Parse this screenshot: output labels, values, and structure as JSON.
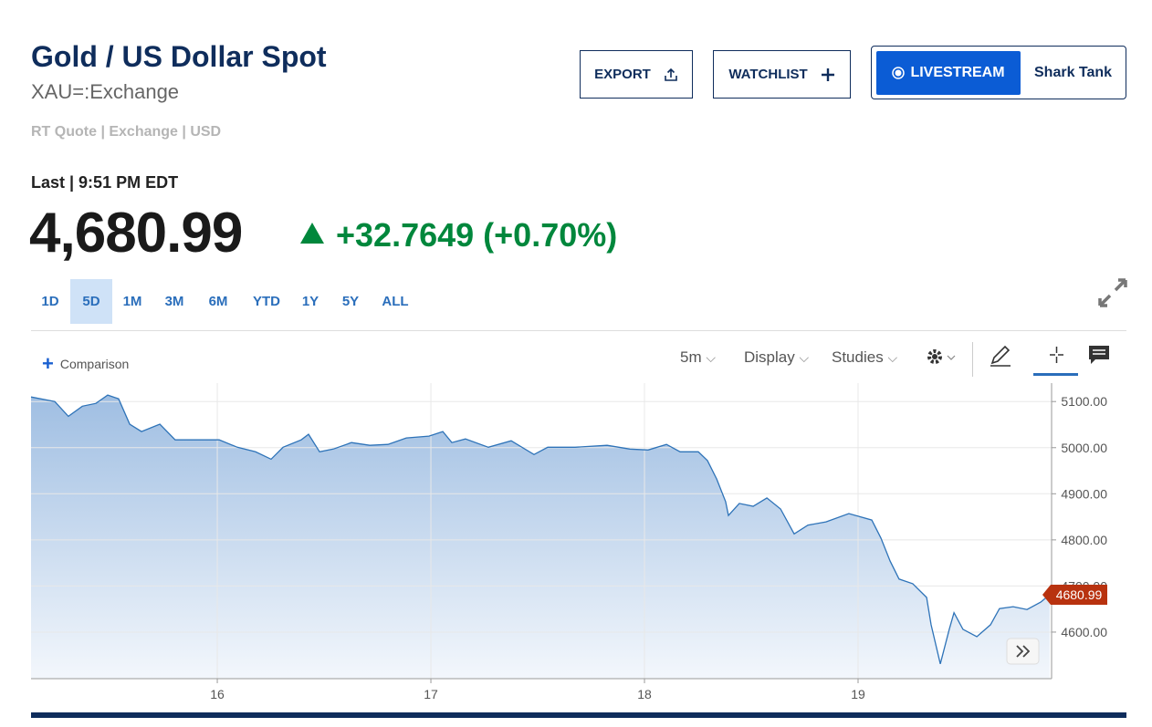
{
  "header": {
    "title": "Gold / US Dollar Spot",
    "symbol": "XAU=:Exchange",
    "quote_info": "RT Quote | Exchange | USD"
  },
  "actions": {
    "export": "EXPORT",
    "watchlist": "WATCHLIST",
    "livestream": "LIVESTREAM",
    "show": "Shark Tank"
  },
  "quote": {
    "last_label": "Last | 9:51 PM EDT",
    "price": "4,680.99",
    "change": "+32.7649",
    "change_percent": "(+0.70%)"
  },
  "ranges": {
    "options": [
      "1D",
      "5D",
      "1M",
      "3M",
      "6M",
      "YTD",
      "1Y",
      "5Y",
      "ALL"
    ],
    "active": 1
  },
  "toolbar": {
    "comparison": "Comparison",
    "interval": "5m",
    "display": "Display",
    "studies": "Studies"
  },
  "chart_data": {
    "type": "area",
    "x": [
      15.128,
      15.239,
      15.303,
      15.368,
      15.432,
      15.487,
      15.538,
      15.59,
      15.645,
      15.731,
      15.803,
      16.009,
      16.094,
      16.179,
      16.252,
      16.308,
      16.393,
      16.427,
      16.479,
      16.543,
      16.628,
      16.714,
      16.799,
      16.885,
      16.991,
      17.056,
      17.098,
      17.162,
      17.269,
      17.376,
      17.483,
      17.547,
      17.675,
      17.825,
      17.932,
      18.017,
      18.103,
      18.167,
      18.252,
      18.295,
      18.338,
      18.38,
      18.393,
      18.444,
      18.509,
      18.573,
      18.637,
      18.701,
      18.765,
      18.85,
      18.957,
      19.064,
      19.107,
      19.15,
      19.192,
      19.256,
      19.321,
      19.342,
      19.385,
      19.427,
      19.449,
      19.491,
      19.556,
      19.62,
      19.662,
      19.726,
      19.791,
      19.855,
      19.897
    ],
    "values": [
      5110,
      5100,
      5068,
      5090,
      5096,
      5114,
      5106,
      5051,
      5035,
      5051,
      5017,
      5017,
      5001,
      4991,
      4975,
      5001,
      5017,
      5029,
      4991,
      4997,
      5011,
      5005,
      5007,
      5021,
      5025,
      5035,
      5011,
      5019,
      5001,
      5015,
      4985,
      5001,
      5001,
      5005,
      4997,
      4995,
      5007,
      4991,
      4991,
      4972,
      4932,
      4883,
      4853,
      4879,
      4873,
      4891,
      4867,
      4813,
      4832,
      4839,
      4857,
      4843,
      4804,
      4754,
      4715,
      4705,
      4675,
      4616,
      4531,
      4606,
      4642,
      4606,
      4590,
      4616,
      4651,
      4655,
      4649,
      4665,
      4680.99
    ],
    "color": "#2e73b8",
    "xlim": [
      15.128,
      19.906
    ],
    "ylim": [
      4499,
      5140
    ],
    "xticks": [
      16,
      17,
      18,
      19
    ],
    "yticks": [
      {
        "value": 4600,
        "label": "4600.00"
      },
      {
        "value": 4700,
        "label": "4700.00"
      },
      {
        "value": 4800,
        "label": "4800.00"
      },
      {
        "value": 4900,
        "label": "4900.00"
      },
      {
        "value": 5000,
        "label": "5000.00"
      },
      {
        "value": 5100,
        "label": "5100.00"
      }
    ],
    "grid": true,
    "last_value": 4680.99,
    "last_value_color": "#b8320f"
  }
}
